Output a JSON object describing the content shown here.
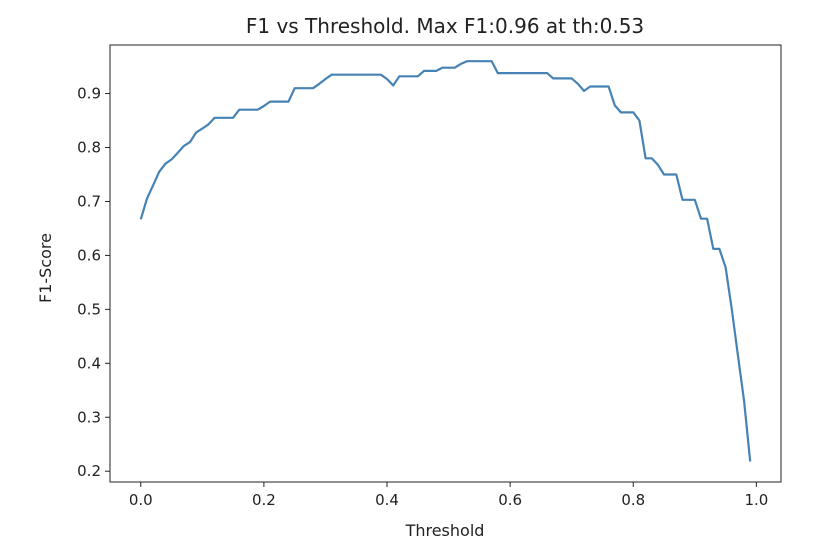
{
  "chart_data": {
    "type": "line",
    "title": "F1 vs Threshold. Max F1:0.96 at th:0.53",
    "xlabel": "Threshold",
    "ylabel": "F1-Score",
    "xlim": [
      -0.05,
      1.04
    ],
    "ylim": [
      0.18,
      0.99
    ],
    "xticks": [
      0.0,
      0.2,
      0.4,
      0.6,
      0.8,
      1.0
    ],
    "xtick_labels": [
      "0.0",
      "0.2",
      "0.4",
      "0.6",
      "0.8",
      "1.0"
    ],
    "yticks": [
      0.2,
      0.3,
      0.4,
      0.5,
      0.6,
      0.7,
      0.8,
      0.9
    ],
    "ytick_labels": [
      "0.2",
      "0.3",
      "0.4",
      "0.5",
      "0.6",
      "0.7",
      "0.8",
      "0.9"
    ],
    "grid": false,
    "line_color": "#4682b4",
    "series": [
      {
        "x": [
          0.0,
          0.01,
          0.02,
          0.03,
          0.04,
          0.05,
          0.06,
          0.07,
          0.08,
          0.09,
          0.1,
          0.11,
          0.12,
          0.13,
          0.14,
          0.15,
          0.16,
          0.17,
          0.18,
          0.19,
          0.2,
          0.21,
          0.22,
          0.23,
          0.24,
          0.25,
          0.26,
          0.27,
          0.28,
          0.29,
          0.3,
          0.31,
          0.32,
          0.33,
          0.34,
          0.35,
          0.36,
          0.37,
          0.38,
          0.39,
          0.4,
          0.41,
          0.42,
          0.43,
          0.44,
          0.45,
          0.46,
          0.47,
          0.48,
          0.49,
          0.5,
          0.51,
          0.52,
          0.53,
          0.54,
          0.55,
          0.56,
          0.57,
          0.58,
          0.59,
          0.6,
          0.61,
          0.62,
          0.63,
          0.64,
          0.65,
          0.66,
          0.67,
          0.68,
          0.69,
          0.7,
          0.71,
          0.72,
          0.73,
          0.74,
          0.75,
          0.76,
          0.77,
          0.78,
          0.79,
          0.8,
          0.81,
          0.82,
          0.83,
          0.84,
          0.85,
          0.86,
          0.87,
          0.88,
          0.89,
          0.9,
          0.91,
          0.92,
          0.93,
          0.94,
          0.95,
          0.96,
          0.97,
          0.98,
          0.99
        ],
        "values": [
          0.667,
          0.705,
          0.73,
          0.755,
          0.77,
          0.778,
          0.79,
          0.803,
          0.81,
          0.828,
          0.835,
          0.843,
          0.855,
          0.855,
          0.855,
          0.855,
          0.87,
          0.87,
          0.87,
          0.87,
          0.877,
          0.885,
          0.885,
          0.885,
          0.885,
          0.91,
          0.91,
          0.91,
          0.91,
          0.918,
          0.927,
          0.935,
          0.935,
          0.935,
          0.935,
          0.935,
          0.935,
          0.935,
          0.935,
          0.935,
          0.927,
          0.915,
          0.932,
          0.932,
          0.932,
          0.932,
          0.942,
          0.942,
          0.942,
          0.948,
          0.948,
          0.948,
          0.955,
          0.96,
          0.96,
          0.96,
          0.96,
          0.96,
          0.938,
          0.938,
          0.938,
          0.938,
          0.938,
          0.938,
          0.938,
          0.938,
          0.938,
          0.928,
          0.928,
          0.928,
          0.928,
          0.918,
          0.905,
          0.913,
          0.913,
          0.913,
          0.913,
          0.878,
          0.865,
          0.865,
          0.865,
          0.85,
          0.78,
          0.78,
          0.768,
          0.75,
          0.75,
          0.75,
          0.703,
          0.703,
          0.703,
          0.668,
          0.668,
          0.612,
          0.612,
          0.578,
          0.5,
          0.415,
          0.33,
          0.218
        ]
      }
    ]
  }
}
